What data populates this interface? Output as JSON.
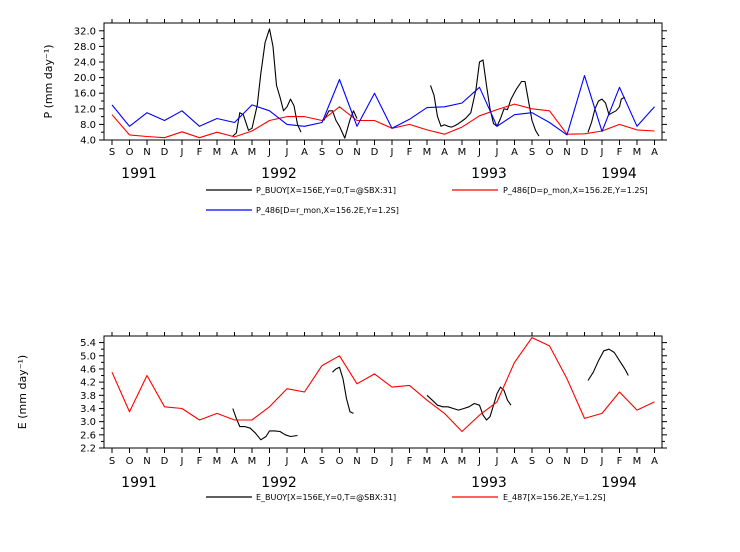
{
  "months": [
    "S",
    "O",
    "N",
    "D",
    "J",
    "F",
    "M",
    "A",
    "M",
    "J",
    "J",
    "A",
    "S",
    "O",
    "N",
    "D",
    "J",
    "F",
    "M",
    "A",
    "M",
    "J",
    "J",
    "A",
    "S",
    "O",
    "N",
    "D",
    "J",
    "F",
    "M",
    "A"
  ],
  "years": [
    "1991",
    "1992",
    "1993",
    "1994"
  ],
  "chart_data": [
    {
      "type": "line",
      "ylabel": "P (mm day⁻¹)",
      "ylim": [
        4.0,
        34.0
      ],
      "yticks": [
        "4.0",
        "8.0",
        "12.0",
        "16.0",
        "20.0",
        "24.0",
        "28.0",
        "32.0"
      ],
      "x_unit": "month index from Sep 1991",
      "series": [
        {
          "name": "P_BUOY[X=156E,Y=0,T=@SBX:31]",
          "color": "#000000",
          "segments": [
            [
              [
                6.9,
                5
              ],
              [
                7.1,
                5.8
              ],
              [
                7.3,
                11
              ],
              [
                7.5,
                10.5
              ],
              [
                7.8,
                6.5
              ],
              [
                8.0,
                7
              ],
              [
                8.3,
                13
              ],
              [
                8.5,
                21
              ],
              [
                8.75,
                29
              ],
              [
                9.0,
                32.5
              ],
              [
                9.2,
                28
              ],
              [
                9.4,
                18
              ],
              [
                9.6,
                15
              ],
              [
                9.8,
                11.5
              ],
              [
                10.0,
                12.5
              ],
              [
                10.2,
                14.5
              ],
              [
                10.4,
                12.8
              ],
              [
                10.6,
                8
              ],
              [
                10.8,
                6
              ]
            ],
            [
              [
                12.1,
                9
              ],
              [
                12.4,
                11.5
              ],
              [
                12.6,
                11.5
              ],
              [
                12.8,
                9
              ],
              [
                13.0,
                7.5
              ],
              [
                13.3,
                4.5
              ],
              [
                13.6,
                9.2
              ],
              [
                13.8,
                11.5
              ],
              [
                14.0,
                9.5
              ]
            ],
            [
              [
                18.2,
                18
              ],
              [
                18.4,
                15.5
              ],
              [
                18.6,
                10
              ],
              [
                18.8,
                7.5
              ],
              [
                19.0,
                7.9
              ],
              [
                19.2,
                7.5
              ],
              [
                19.4,
                7.3
              ],
              [
                19.6,
                7.7
              ],
              [
                19.8,
                8.2
              ],
              [
                20.2,
                9.5
              ],
              [
                20.5,
                11
              ],
              [
                20.8,
                17
              ],
              [
                21.0,
                24
              ],
              [
                21.2,
                24.5
              ],
              [
                21.4,
                18
              ],
              [
                21.6,
                12
              ],
              [
                21.8,
                8.2
              ],
              [
                22.0,
                7.5
              ],
              [
                22.2,
                9.5
              ],
              [
                22.4,
                12
              ],
              [
                22.6,
                11.8
              ],
              [
                22.8,
                14.5
              ],
              [
                23.1,
                17
              ],
              [
                23.4,
                19
              ],
              [
                23.6,
                19
              ],
              [
                23.8,
                14
              ],
              [
                24.0,
                9
              ],
              [
                24.2,
                6.5
              ],
              [
                24.4,
                5
              ]
            ],
            [
              [
                27.2,
                6
              ],
              [
                27.4,
                8.5
              ],
              [
                27.6,
                12
              ],
              [
                27.8,
                14
              ],
              [
                28.0,
                14.5
              ],
              [
                28.2,
                13.5
              ],
              [
                28.4,
                10.5
              ],
              [
                28.6,
                11
              ],
              [
                28.8,
                11.5
              ],
              [
                29.0,
                12.5
              ],
              [
                29.1,
                14.5
              ],
              [
                29.3,
                15
              ]
            ]
          ]
        },
        {
          "name": "P_486[D=p_mon,X=156.2E,Y=1.2S]",
          "color": "#ff0000",
          "segments": [
            [
              [
                0,
                10.5
              ],
              [
                1,
                5.3
              ],
              [
                2,
                4.9
              ],
              [
                3,
                4.6
              ],
              [
                4,
                6.1
              ],
              [
                5,
                4.6
              ],
              [
                6,
                6
              ],
              [
                7,
                4.8
              ],
              [
                8,
                6.3
              ],
              [
                9,
                9
              ],
              [
                10,
                10
              ],
              [
                11,
                10
              ],
              [
                12,
                9
              ],
              [
                13,
                12.5
              ],
              [
                14,
                9
              ],
              [
                15,
                9
              ],
              [
                16,
                7
              ],
              [
                17,
                8
              ],
              [
                18,
                6.6
              ],
              [
                19,
                5.5
              ],
              [
                20,
                7.3
              ],
              [
                21,
                10.2
              ],
              [
                22,
                11.8
              ],
              [
                23,
                13.2
              ],
              [
                24,
                12
              ],
              [
                25,
                11.5
              ],
              [
                26,
                5.5
              ],
              [
                27,
                5.6
              ],
              [
                28,
                6.3
              ],
              [
                29,
                8
              ],
              [
                30,
                6.6
              ],
              [
                31,
                6.3
              ]
            ]
          ]
        },
        {
          "name": "P_486[D=r_mon,X=156.2E,Y=1.2S]",
          "color": "#0000ff",
          "segments": [
            [
              [
                0,
                13
              ],
              [
                1,
                7.5
              ],
              [
                2,
                11
              ],
              [
                3,
                9
              ],
              [
                4,
                11.5
              ],
              [
                5,
                7.5
              ],
              [
                6,
                9.5
              ],
              [
                7,
                8.5
              ],
              [
                8,
                13
              ],
              [
                9,
                11.5
              ],
              [
                10,
                8
              ],
              [
                11,
                7.5
              ],
              [
                12,
                8.5
              ],
              [
                13,
                19.5
              ],
              [
                14,
                7.5
              ],
              [
                15,
                16
              ],
              [
                16,
                7
              ],
              [
                17,
                9.3
              ],
              [
                18,
                12.3
              ],
              [
                19,
                12.5
              ],
              [
                20,
                13.5
              ],
              [
                21,
                17.5
              ],
              [
                22,
                7.5
              ],
              [
                23,
                10.5
              ],
              [
                24,
                11
              ],
              [
                25,
                8.5
              ],
              [
                26,
                5.3
              ],
              [
                27,
                20.5
              ],
              [
                28,
                6.2
              ],
              [
                29,
                17.5
              ],
              [
                30,
                7.5
              ],
              [
                31,
                12.5
              ]
            ]
          ]
        }
      ]
    },
    {
      "type": "line",
      "ylabel": "E (mm day⁻¹)",
      "ylim": [
        2.2,
        5.6
      ],
      "yticks": [
        "2.2",
        "2.6",
        "3.0",
        "3.4",
        "3.8",
        "4.2",
        "4.6",
        "5.0",
        "5.4"
      ],
      "x_unit": "month index from Sep 1991",
      "series": [
        {
          "name": "E_BUOY[X=156E,Y=0,T=@SBX:31]",
          "color": "#000000",
          "segments": [
            [
              [
                6.9,
                3.4
              ],
              [
                7.1,
                3.1
              ],
              [
                7.3,
                2.85
              ],
              [
                7.6,
                2.85
              ],
              [
                7.9,
                2.8
              ],
              [
                8.2,
                2.65
              ],
              [
                8.5,
                2.45
              ],
              [
                8.8,
                2.55
              ],
              [
                9.0,
                2.72
              ],
              [
                9.3,
                2.72
              ],
              [
                9.6,
                2.7
              ],
              [
                9.9,
                2.6
              ],
              [
                10.2,
                2.55
              ],
              [
                10.6,
                2.58
              ]
            ],
            [
              [
                12.6,
                4.5
              ],
              [
                12.8,
                4.6
              ],
              [
                13.0,
                4.65
              ],
              [
                13.2,
                4.3
              ],
              [
                13.4,
                3.7
              ],
              [
                13.6,
                3.3
              ],
              [
                13.8,
                3.25
              ]
            ],
            [
              [
                18.0,
                3.8
              ],
              [
                18.3,
                3.65
              ],
              [
                18.6,
                3.5
              ],
              [
                18.9,
                3.45
              ],
              [
                19.2,
                3.45
              ],
              [
                19.5,
                3.4
              ],
              [
                19.8,
                3.35
              ],
              [
                20.1,
                3.4
              ],
              [
                20.4,
                3.45
              ],
              [
                20.7,
                3.55
              ],
              [
                21.0,
                3.5
              ],
              [
                21.2,
                3.2
              ],
              [
                21.4,
                3.05
              ],
              [
                21.6,
                3.15
              ],
              [
                21.8,
                3.5
              ],
              [
                22.0,
                3.85
              ],
              [
                22.2,
                4.05
              ],
              [
                22.4,
                3.95
              ],
              [
                22.6,
                3.65
              ],
              [
                22.8,
                3.5
              ]
            ],
            [
              [
                27.2,
                4.25
              ],
              [
                27.5,
                4.5
              ],
              [
                27.8,
                4.85
              ],
              [
                28.1,
                5.15
              ],
              [
                28.4,
                5.2
              ],
              [
                28.7,
                5.1
              ],
              [
                29.0,
                4.85
              ],
              [
                29.3,
                4.6
              ],
              [
                29.5,
                4.4
              ]
            ]
          ]
        },
        {
          "name": "E_487[X=156.2E,Y=1.2S]",
          "color": "#ff0000",
          "segments": [
            [
              [
                0,
                4.5
              ],
              [
                1,
                3.3
              ],
              [
                2,
                4.4
              ],
              [
                3,
                3.45
              ],
              [
                4,
                3.4
              ],
              [
                5,
                3.05
              ],
              [
                6,
                3.25
              ],
              [
                7,
                3.05
              ],
              [
                8,
                3.05
              ],
              [
                9,
                3.45
              ],
              [
                10,
                4
              ],
              [
                11,
                3.9
              ],
              [
                12,
                4.7
              ],
              [
                13,
                5
              ],
              [
                14,
                4.15
              ],
              [
                15,
                4.45
              ],
              [
                16,
                4.05
              ],
              [
                17,
                4.1
              ],
              [
                18,
                3.65
              ],
              [
                19,
                3.25
              ],
              [
                20,
                2.7
              ],
              [
                21,
                3.2
              ],
              [
                22,
                3.6
              ],
              [
                23,
                4.8
              ],
              [
                24,
                5.55
              ],
              [
                25,
                5.3
              ],
              [
                26,
                4.3
              ],
              [
                27,
                3.1
              ],
              [
                28,
                3.25
              ],
              [
                29,
                3.9
              ],
              [
                30,
                3.35
              ],
              [
                31,
                3.6
              ]
            ]
          ]
        }
      ]
    }
  ]
}
